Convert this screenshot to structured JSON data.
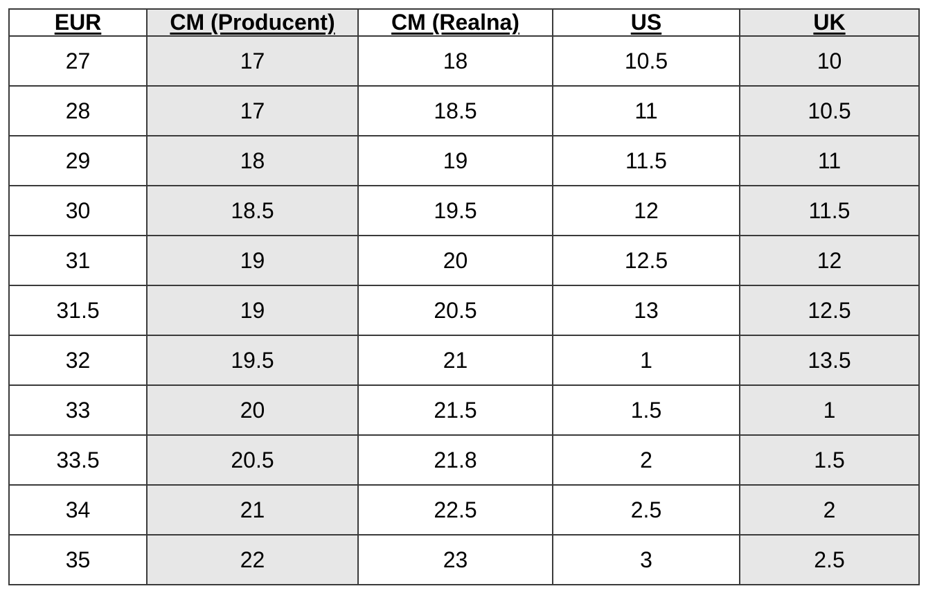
{
  "table": {
    "columns": [
      "EUR",
      "CM  (Producent)",
      "CM  (Realna)",
      "US",
      "UK"
    ],
    "rows": [
      [
        "27",
        "17",
        "18",
        "10.5",
        "10"
      ],
      [
        "28",
        "17",
        "18.5",
        "11",
        "10.5"
      ],
      [
        "29",
        "18",
        "19",
        "11.5",
        "11"
      ],
      [
        "30",
        "18.5",
        "19.5",
        "12",
        "11.5"
      ],
      [
        "31",
        "19",
        "20",
        "12.5",
        "12"
      ],
      [
        "31.5",
        "19",
        "20.5",
        "13",
        "12.5"
      ],
      [
        "32",
        "19.5",
        "21",
        "1",
        "13.5"
      ],
      [
        "33",
        "20",
        "21.5",
        "1.5",
        "1"
      ],
      [
        "33.5",
        "20.5",
        "21.8",
        "2",
        "1.5"
      ],
      [
        "34",
        "21",
        "22.5",
        "2.5",
        "2"
      ],
      [
        "35",
        "22",
        "23",
        "3",
        "2.5"
      ]
    ]
  },
  "colors": {
    "shaded_column": "#e7e7e7",
    "border": "#3a3a3a"
  }
}
